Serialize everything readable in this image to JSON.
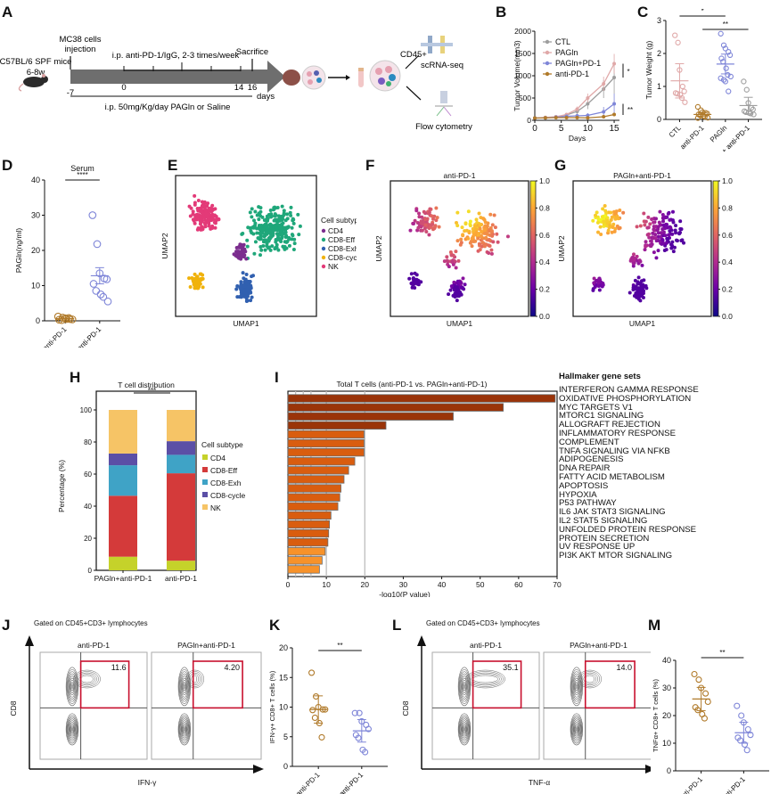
{
  "panels": {
    "A": {
      "label": "A",
      "mouse_strain": "C57BL/6 SPF mice",
      "mouse_age": "6-8w",
      "injection_label": "MC38 cells injection",
      "injection_line1": "MC38 cells",
      "injection_line2": "injection",
      "treatment_label": "i.p. anti-PD-1/IgG, 2-3 times/week",
      "sacrifice_label": "Sacrifice",
      "ticks": [
        "-7",
        "0",
        "14",
        "16"
      ],
      "days_label": "days",
      "diet_label": "i.p. 50mg/Kg/day PAGln or Saline",
      "cd45_label": "CD45+",
      "scrna_label": "scRNA-seq",
      "flow_label": "Flow cytometry"
    },
    "B": {
      "label": "B"
    },
    "C": {
      "label": "C"
    },
    "D": {
      "label": "D"
    },
    "E": {
      "label": "E"
    },
    "F": {
      "label": "F"
    },
    "G": {
      "label": "G"
    },
    "H": {
      "label": "H"
    },
    "I": {
      "label": "I"
    },
    "J": {
      "label": "J",
      "gate_label": "Gated on CD45+CD3+ lymphocytes",
      "xlabel": "IFN-γ",
      "ylabel": "CD8",
      "plots": [
        {
          "title": "anti-PD-1",
          "value": "11.6"
        },
        {
          "title": "PAGln+anti-PD-1",
          "value": "4.20"
        }
      ]
    },
    "K": {
      "label": "K"
    },
    "L": {
      "label": "L",
      "gate_label": "Gated on CD45+CD3+ lymphocytes",
      "xlabel": "TNF-α",
      "ylabel": "CD8",
      "plots": [
        {
          "title": "anti-PD-1",
          "value": "35.1"
        },
        {
          "title": "PAGln+anti-PD-1",
          "value": "14.0"
        }
      ]
    },
    "M": {
      "label": "M"
    }
  },
  "colors": {
    "ctl": "#9e9e9e",
    "pagln": "#e0a8a8",
    "pagln_pd1": "#7f86d8",
    "anti_pd1": "#b07a2a",
    "cd4": "#c5d22a",
    "cd8_eff": "#d43a3a",
    "cd8_exh": "#3fa3c6",
    "cd8_cycle": "#5b4fa6",
    "nk": "#f6c466",
    "umap_cd4": "#7b2d8e",
    "umap_eff": "#1fa77a",
    "umap_exh": "#3160b0",
    "umap_cycle": "#f0b20a",
    "umap_nk": "#e33a78",
    "gate": "#c8102e"
  },
  "chart_data": [
    {
      "id": "B",
      "type": "line",
      "title": "",
      "xlabel": "Days",
      "ylabel": "Tumor Volume(mm3)",
      "xlim": [
        0,
        16
      ],
      "ylim": [
        0,
        2000
      ],
      "xticks": [
        "0",
        "5",
        "10",
        "15"
      ],
      "yticks": [
        "0",
        "500",
        "1000",
        "1500",
        "2000"
      ],
      "x": [
        0,
        2,
        4,
        6,
        8,
        10,
        13,
        15
      ],
      "series": [
        {
          "name": "CTL",
          "values": [
            50,
            60,
            75,
            120,
            200,
            370,
            700,
            960
          ],
          "errors": [
            10,
            10,
            15,
            30,
            60,
            120,
            200,
            360
          ]
        },
        {
          "name": "PAGln",
          "values": [
            50,
            65,
            80,
            130,
            250,
            500,
            820,
            1270
          ],
          "errors": [
            10,
            10,
            15,
            30,
            60,
            100,
            160,
            220
          ]
        },
        {
          "name": "PAGln+PD-1",
          "values": [
            50,
            55,
            70,
            90,
            100,
            110,
            190,
            370
          ],
          "errors": [
            10,
            10,
            15,
            20,
            40,
            50,
            110,
            230
          ]
        },
        {
          "name": "anti-PD-1",
          "values": [
            50,
            55,
            60,
            60,
            60,
            55,
            80,
            130
          ],
          "errors": [
            5,
            5,
            10,
            10,
            10,
            10,
            20,
            40
          ]
        }
      ],
      "legend": [
        "CTL",
        "PAGln",
        "PAGln+PD-1",
        "anti-PD-1"
      ],
      "legend_position": "top-left",
      "annotations": [
        "*",
        "**"
      ]
    },
    {
      "id": "C",
      "type": "scatter",
      "ylabel": "Tumor Weight (g)",
      "ylim": [
        0,
        3
      ],
      "yticks": [
        "0",
        "1",
        "2",
        "3"
      ],
      "categories": [
        "CTL",
        "anti-PD-1",
        "PAGln",
        "PAGln+ anti-PD-1"
      ],
      "series": [
        {
          "name": "CTL",
          "values": [
            2.55,
            2.33,
            1.5,
            1.0,
            0.85,
            0.8,
            0.78,
            0.75,
            0.65,
            0.52
          ],
          "mean": 1.17,
          "sd_err": 0.52
        },
        {
          "name": "anti-PD-1",
          "values": [
            0.38,
            0.28,
            0.22,
            0.2,
            0.18,
            0.15,
            0.12,
            0.1,
            0.08,
            0.05,
            0.04
          ],
          "mean": 0.15,
          "sd_err": 0.05
        },
        {
          "name": "PAGln",
          "values": [
            2.6,
            2.25,
            2.15,
            2.05,
            1.95,
            1.85,
            1.75,
            1.55,
            1.35,
            1.3,
            1.25,
            1.2,
            1.15,
            0.85
          ],
          "mean": 1.68,
          "sd_err": 0.3
        },
        {
          "name": "PAGln+ anti-PD-1",
          "values": [
            1.15,
            0.9,
            0.5,
            0.35,
            0.3,
            0.25,
            0.22,
            0.2,
            0.18,
            0.15
          ],
          "mean": 0.42,
          "sd_err": 0.25
        }
      ],
      "annotations": [
        {
          "text": "*",
          "between": [
            "CTL",
            "PAGln"
          ]
        },
        {
          "text": "**",
          "between": [
            "anti-PD-1",
            "PAGln+ anti-PD-1"
          ]
        }
      ]
    },
    {
      "id": "D",
      "type": "scatter",
      "title": "Serum",
      "ylabel": "PAGln(ng/ml)",
      "ylim": [
        0,
        40
      ],
      "yticks": [
        "0",
        "10",
        "20",
        "30",
        "40"
      ],
      "categories": [
        "anti-PD-1",
        "PAGln+ anti-PD-1"
      ],
      "series": [
        {
          "name": "anti-PD-1",
          "values": [
            1.2,
            0.9,
            0.7,
            0.5,
            0.4,
            0.3,
            0.2,
            0.5,
            0.8
          ],
          "mean": 0.6,
          "sd_err": 0.1
        },
        {
          "name": "PAGln+ anti-PD-1",
          "values": [
            30,
            21.8,
            13.5,
            12.0,
            11.8,
            10.5,
            8.5,
            7.5,
            6.8,
            5.5
          ],
          "mean": 12.8,
          "sd_err": 2.3
        }
      ],
      "annotations": [
        {
          "text": "****",
          "between": [
            "anti-PD-1",
            "PAGln+ anti-PD-1"
          ]
        }
      ]
    },
    {
      "id": "E",
      "type": "scatter",
      "xlabel": "UMAP1",
      "ylabel": "UMAP2",
      "legend_title": "Cell subtype",
      "legend": [
        "CD4",
        "CD8-Eff",
        "CD8-Exh",
        "CD8-cycle",
        "NK"
      ],
      "legend_position": "right",
      "clusters": [
        {
          "name": "NK",
          "center": [
            0.2,
            0.72
          ],
          "spread": [
            0.14,
            0.14
          ],
          "n": 150
        },
        {
          "name": "CD8-Eff",
          "center": [
            0.68,
            0.62
          ],
          "spread": [
            0.24,
            0.22
          ],
          "n": 260
        },
        {
          "name": "CD4",
          "center": [
            0.47,
            0.45
          ],
          "spread": [
            0.07,
            0.08
          ],
          "n": 40
        },
        {
          "name": "CD8-Exh",
          "center": [
            0.5,
            0.2
          ],
          "spread": [
            0.08,
            0.12
          ],
          "n": 110
        },
        {
          "name": "CD8-cycle",
          "center": [
            0.15,
            0.25
          ],
          "spread": [
            0.06,
            0.08
          ],
          "n": 55
        }
      ]
    },
    {
      "id": "F",
      "type": "scatter",
      "title": "anti-PD-1",
      "xlabel": "UMAP1",
      "ylabel": "UMAP2",
      "colorbar": {
        "min": 0.0,
        "max": 1.0,
        "ticks": [
          "0.0",
          "0.2",
          "0.4",
          "0.6",
          "0.8",
          "1.0"
        ],
        "colormap": "plasma"
      },
      "hotspot": [
        0.55,
        0.72
      ]
    },
    {
      "id": "G",
      "type": "scatter",
      "title": "PAGln+anti-PD-1",
      "xlabel": "UMAP1",
      "ylabel": "UMAP2",
      "colorbar": {
        "min": 0.0,
        "max": 1.0,
        "ticks": [
          "0.0",
          "0.2",
          "0.4",
          "0.6",
          "0.8",
          "1.0"
        ],
        "colormap": "plasma"
      },
      "hotspot": [
        0.2,
        0.72
      ]
    },
    {
      "id": "H",
      "type": "bar",
      "stacked": true,
      "title": "T cell distribution",
      "ylabel": "Percentage (%)",
      "ylim": [
        0,
        100
      ],
      "yticks": [
        "0",
        "20",
        "40",
        "60",
        "80",
        "100"
      ],
      "categories": [
        "PAGln+anti-PD-1",
        "anti-PD-1"
      ],
      "legend_title": "Cell subtype",
      "legend_position": "right",
      "series": [
        {
          "name": "CD4",
          "values": [
            8.5,
            6
          ]
        },
        {
          "name": "CD8-Eff",
          "values": [
            38,
            54.5
          ]
        },
        {
          "name": "CD8-Exh",
          "values": [
            19,
            11.5
          ]
        },
        {
          "name": "CD8-cycle",
          "values": [
            7.3,
            8.5
          ]
        },
        {
          "name": "NK",
          "values": [
            27.2,
            19.5
          ]
        }
      ],
      "annotations": [
        "***"
      ]
    },
    {
      "id": "I",
      "type": "bar",
      "orientation": "horizontal",
      "title": "Total T cells (anti-PD-1 vs. PAGln+anti-PD-1)",
      "xlabel": "-log10(P value)",
      "xlim": [
        0,
        70
      ],
      "xticks": [
        "0",
        "10",
        "20",
        "30",
        "40",
        "50",
        "60",
        "70"
      ],
      "legend_title": "Hallmaker gene sets",
      "categories": [
        "INTERFERON GAMMA RESPONSE",
        "OXIDATIVE PHOSPHORYLATION",
        "MYC TARGETS V1",
        "MTORC1 SIGNALING",
        "ALLOGRAFT REJECTION",
        "INFLAMMATORY RESPONSE",
        "COMPLEMENT",
        "TNFA SIGNALING VIA NFKB",
        "ADIPOGENESIS",
        "DNA REPAIR",
        "FATTY ACID METABOLISM",
        "APOPTOSIS",
        "HYPOXIA",
        "P53 PATHWAY",
        "IL6 JAK STAT3 SIGNALING",
        "IL2 STAT5 SIGNALING",
        "UNFOLDED PROTEIN RESPONSE",
        "PROTEIN SECRETION",
        "UV RESPONSE UP",
        "PI3K AKT MTOR SIGNALING"
      ],
      "values": [
        69.5,
        56,
        43,
        25.5,
        19.8,
        19.8,
        19.8,
        17.4,
        15.8,
        14.6,
        13.8,
        13.5,
        13.0,
        11.2,
        10.8,
        10.6,
        10.4,
        9.7,
        8.9,
        8.2
      ],
      "bar_colors": [
        "#9a3409",
        "#9a3409",
        "#9a3409",
        "#9a3409",
        "#d95d0f",
        "#d95d0f",
        "#d95d0f",
        "#d95d0f",
        "#d95d0f",
        "#d95d0f",
        "#d95d0f",
        "#d95d0f",
        "#d95d0f",
        "#d95d0f",
        "#d95d0f",
        "#d95d0f",
        "#d95d0f",
        "#f7922a",
        "#f7922a",
        "#f7922a"
      ],
      "vlines": [
        2,
        4,
        6,
        10,
        20
      ]
    },
    {
      "id": "K",
      "type": "scatter",
      "ylabel": "IFN-γ+ CD8+ T cells (%)",
      "ylim": [
        0,
        20
      ],
      "yticks": [
        "0",
        "5",
        "10",
        "15",
        "20"
      ],
      "categories": [
        "anti-PD-1",
        "PAGln+ anti-PD-1"
      ],
      "series": [
        {
          "name": "anti-PD-1",
          "values": [
            15.8,
            11.8,
            10.0,
            9.6,
            9.6,
            9.5,
            8.2,
            7.3,
            4.9
          ],
          "mean": 9.6,
          "sd_err": 2.3
        },
        {
          "name": "PAGln+ anti-PD-1",
          "values": [
            9.0,
            9.0,
            7.6,
            7.0,
            6.3,
            5.3,
            4.8,
            2.8,
            2.4
          ],
          "mean": 6.0,
          "sd_err": 1.9
        }
      ],
      "annotations": [
        {
          "text": "**",
          "between": [
            "anti-PD-1",
            "PAGln+ anti-PD-1"
          ]
        }
      ]
    },
    {
      "id": "M",
      "type": "scatter",
      "ylabel": "TNFα+ CD8+ T cells (%)",
      "ylim": [
        0,
        40
      ],
      "yticks": [
        "0",
        "10",
        "20",
        "30",
        "40"
      ],
      "categories": [
        "anti-PD-1",
        "PAGln+ anti-PD-1"
      ],
      "series": [
        {
          "name": "anti-PD-1",
          "values": [
            35.0,
            33.0,
            30.0,
            28.0,
            25.0,
            23.0,
            22.0,
            20.5,
            19.0
          ],
          "mean": 26.0,
          "sd_err": 4.2
        },
        {
          "name": "PAGln+ anti-PD-1",
          "values": [
            23.5,
            20.0,
            17.5,
            15.0,
            13.0,
            12.0,
            11.0,
            9.5,
            7.5
          ],
          "mean": 13.8,
          "sd_err": 3.8
        }
      ],
      "annotations": [
        {
          "text": "**",
          "between": [
            "anti-PD-1",
            "PAGln+ anti-PD-1"
          ]
        }
      ]
    }
  ]
}
